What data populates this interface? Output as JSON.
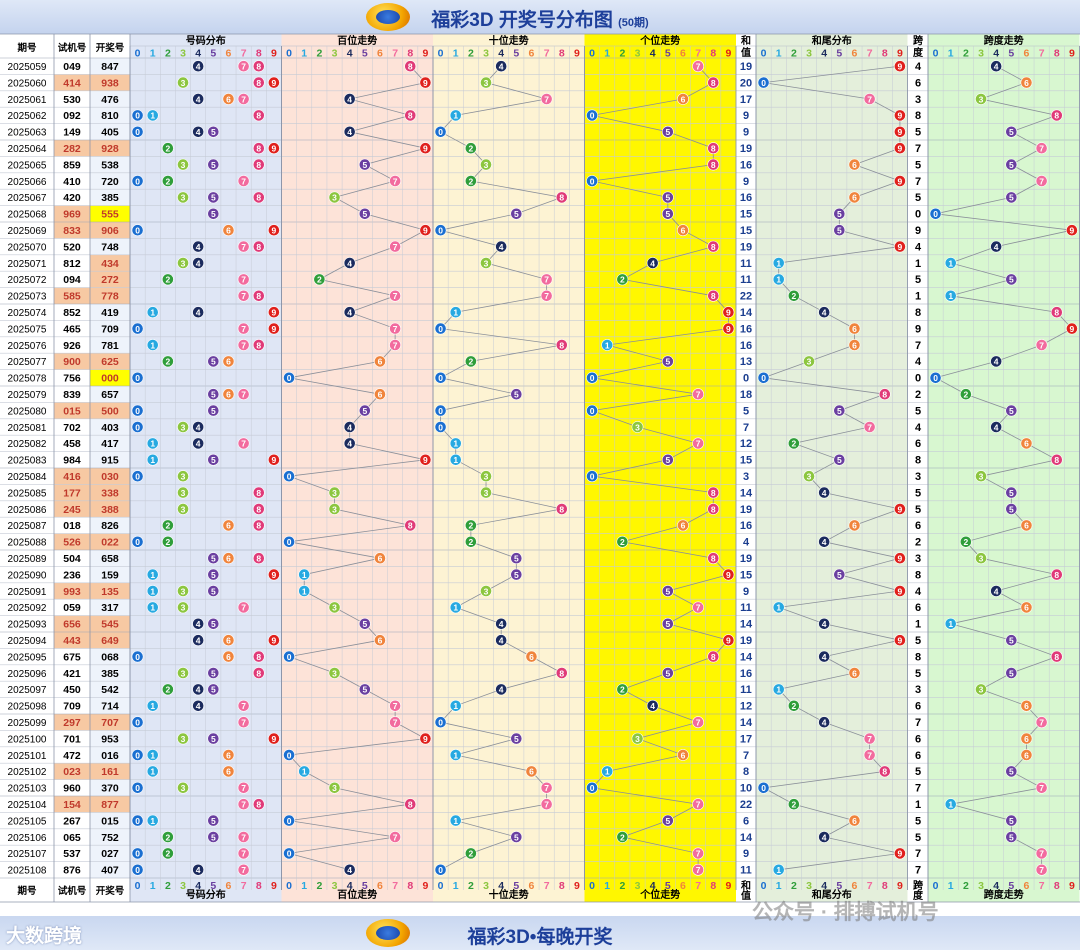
{
  "header": {
    "title": "福彩3D 开奖号分布图",
    "subtitle": "(50期)"
  },
  "footer": {
    "title": "福彩3D•每晚开奖",
    "watermark_left": "大数跨境",
    "watermark_right": "公众号 · 排搏试机号"
  },
  "columns": {
    "period": "期号",
    "trial": "试机号",
    "draw": "开奖号",
    "dist": "号码分布",
    "hundreds": "百位走势",
    "tens": "十位走势",
    "units": "个位走势",
    "sum_top": "和",
    "sum_bottom": "值",
    "tail": "和尾分布",
    "span_top": "跨",
    "span_bottom": "度",
    "span_dist": "跨度走势"
  },
  "digits": [
    "0",
    "1",
    "2",
    "3",
    "4",
    "5",
    "6",
    "7",
    "8",
    "9"
  ],
  "colors": {
    "d0": "#1a6fd1",
    "d1": "#27a9e1",
    "d2": "#2f9e3a",
    "d3": "#8cc63f",
    "d4": "#1b2b5e",
    "d5": "#6a3fa0",
    "d6": "#f0843c",
    "d7": "#f26b9e",
    "d8": "#e03a78",
    "d9": "#e0201c",
    "dist_bg": "#dfe6f5",
    "hundreds_bg": "#fde3d8",
    "tens_bg": "#fdf3d3",
    "units_bg": "#fff700",
    "tail_bg": "#e4efdb",
    "span_bg": "#d8f7d0",
    "trial_hl": "#f7c9a3",
    "draw_hl": "#ffff00"
  },
  "chart_data": {
    "type": "table",
    "rows": [
      {
        "period": "2025059",
        "trial": "049",
        "draw": "847",
        "sum": "19",
        "span": "4"
      },
      {
        "period": "2025060",
        "trial": "414",
        "draw": "938",
        "sum": "20",
        "span": "6"
      },
      {
        "period": "2025061",
        "trial": "530",
        "draw": "476",
        "sum": "17",
        "span": "3"
      },
      {
        "period": "2025062",
        "trial": "092",
        "draw": "810",
        "sum": "9",
        "span": "8"
      },
      {
        "period": "2025063",
        "trial": "149",
        "draw": "405",
        "sum": "9",
        "span": "5"
      },
      {
        "period": "2025064",
        "trial": "282",
        "draw": "928",
        "sum": "19",
        "span": "7"
      },
      {
        "period": "2025065",
        "trial": "859",
        "draw": "538",
        "sum": "16",
        "span": "5"
      },
      {
        "period": "2025066",
        "trial": "410",
        "draw": "720",
        "sum": "9",
        "span": "7"
      },
      {
        "period": "2025067",
        "trial": "420",
        "draw": "385",
        "sum": "16",
        "span": "5"
      },
      {
        "period": "2025068",
        "trial": "969",
        "draw": "555",
        "sum": "15",
        "span": "0"
      },
      {
        "period": "2025069",
        "trial": "833",
        "draw": "906",
        "sum": "15",
        "span": "9"
      },
      {
        "period": "2025070",
        "trial": "520",
        "draw": "748",
        "sum": "19",
        "span": "4"
      },
      {
        "period": "2025071",
        "trial": "812",
        "draw": "434",
        "sum": "11",
        "span": "1"
      },
      {
        "period": "2025072",
        "trial": "094",
        "draw": "272",
        "sum": "11",
        "span": "5"
      },
      {
        "period": "2025073",
        "trial": "585",
        "draw": "778",
        "sum": "22",
        "span": "1"
      },
      {
        "period": "2025074",
        "trial": "852",
        "draw": "419",
        "sum": "14",
        "span": "8"
      },
      {
        "period": "2025075",
        "trial": "465",
        "draw": "709",
        "sum": "16",
        "span": "9"
      },
      {
        "period": "2025076",
        "trial": "926",
        "draw": "781",
        "sum": "16",
        "span": "7"
      },
      {
        "period": "2025077",
        "trial": "900",
        "draw": "625",
        "sum": "13",
        "span": "4"
      },
      {
        "period": "2025078",
        "trial": "756",
        "draw": "000",
        "sum": "0",
        "span": "0"
      },
      {
        "period": "2025079",
        "trial": "839",
        "draw": "657",
        "sum": "18",
        "span": "2"
      },
      {
        "period": "2025080",
        "trial": "015",
        "draw": "500",
        "sum": "5",
        "span": "5"
      },
      {
        "period": "2025081",
        "trial": "702",
        "draw": "403",
        "sum": "7",
        "span": "4"
      },
      {
        "period": "2025082",
        "trial": "458",
        "draw": "417",
        "sum": "12",
        "span": "6"
      },
      {
        "period": "2025083",
        "trial": "984",
        "draw": "915",
        "sum": "15",
        "span": "8"
      },
      {
        "period": "2025084",
        "trial": "416",
        "draw": "030",
        "sum": "3",
        "span": "3"
      },
      {
        "period": "2025085",
        "trial": "177",
        "draw": "338",
        "sum": "14",
        "span": "5"
      },
      {
        "period": "2025086",
        "trial": "245",
        "draw": "388",
        "sum": "19",
        "span": "5"
      },
      {
        "period": "2025087",
        "trial": "018",
        "draw": "826",
        "sum": "16",
        "span": "6"
      },
      {
        "period": "2025088",
        "trial": "526",
        "draw": "022",
        "sum": "4",
        "span": "2"
      },
      {
        "period": "2025089",
        "trial": "504",
        "draw": "658",
        "sum": "19",
        "span": "3"
      },
      {
        "period": "2025090",
        "trial": "236",
        "draw": "159",
        "sum": "15",
        "span": "8"
      },
      {
        "period": "2025091",
        "trial": "993",
        "draw": "135",
        "sum": "9",
        "span": "4"
      },
      {
        "period": "2025092",
        "trial": "059",
        "draw": "317",
        "sum": "11",
        "span": "6"
      },
      {
        "period": "2025093",
        "trial": "656",
        "draw": "545",
        "sum": "14",
        "span": "1"
      },
      {
        "period": "2025094",
        "trial": "443",
        "draw": "649",
        "sum": "19",
        "span": "5"
      },
      {
        "period": "2025095",
        "trial": "675",
        "draw": "068",
        "sum": "14",
        "span": "8"
      },
      {
        "period": "2025096",
        "trial": "421",
        "draw": "385",
        "sum": "16",
        "span": "5"
      },
      {
        "period": "2025097",
        "trial": "450",
        "draw": "542",
        "sum": "11",
        "span": "3"
      },
      {
        "period": "2025098",
        "trial": "709",
        "draw": "714",
        "sum": "12",
        "span": "6"
      },
      {
        "period": "2025099",
        "trial": "297",
        "draw": "707",
        "sum": "14",
        "span": "7"
      },
      {
        "period": "2025100",
        "trial": "701",
        "draw": "953",
        "sum": "17",
        "span": "6"
      },
      {
        "period": "2025101",
        "trial": "472",
        "draw": "016",
        "sum": "7",
        "span": "6"
      },
      {
        "period": "2025102",
        "trial": "023",
        "draw": "161",
        "sum": "8",
        "span": "5"
      },
      {
        "period": "2025103",
        "trial": "960",
        "draw": "370",
        "sum": "10",
        "span": "7"
      },
      {
        "period": "2025104",
        "trial": "154",
        "draw": "877",
        "sum": "22",
        "span": "1"
      },
      {
        "period": "2025105",
        "trial": "267",
        "draw": "015",
        "sum": "6",
        "span": "5"
      },
      {
        "period": "2025106",
        "trial": "065",
        "draw": "752",
        "sum": "14",
        "span": "5"
      },
      {
        "period": "2025107",
        "trial": "537",
        "draw": "027",
        "sum": "9",
        "span": "7"
      },
      {
        "period": "2025108",
        "trial": "876",
        "draw": "407",
        "sum": "11",
        "span": "7"
      }
    ],
    "highlight_trial": [
      "2025060",
      "2025064",
      "2025068",
      "2025069",
      "2025073",
      "2025077",
      "2025080",
      "2025084",
      "2025085",
      "2025086",
      "2025088",
      "2025091",
      "2025093",
      "2025094",
      "2025099",
      "2025102",
      "2025104"
    ],
    "highlight_draw": [
      "2025068",
      "2025078"
    ],
    "highlight_draw_light": [
      "2025060",
      "2025064",
      "2025069",
      "2025071",
      "2025072",
      "2025073",
      "2025077",
      "2025080",
      "2025084",
      "2025085",
      "2025086",
      "2025088",
      "2025091",
      "2025093",
      "2025094",
      "2025099",
      "2025102",
      "2025104"
    ]
  }
}
